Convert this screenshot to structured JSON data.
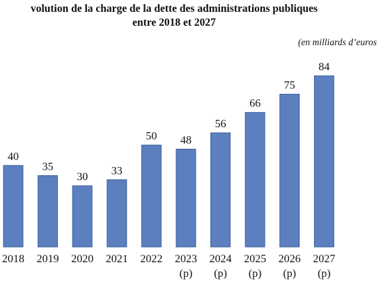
{
  "title_line1": "volution de la charge de la dette des administrations publiques",
  "title_line2": "entre 2018 et 2027",
  "unit_note": "(en milliards d’euros",
  "chart_data": {
    "type": "bar",
    "categories": [
      "2018",
      "2019",
      "2020",
      "2021",
      "2022",
      "2023",
      "2024",
      "2025",
      "2026",
      "2027"
    ],
    "category_sublabels": [
      "",
      "",
      "",
      "",
      "",
      "(p)",
      "(p)",
      "(p)",
      "(p)",
      "(p)"
    ],
    "values": [
      40,
      35,
      30,
      33,
      50,
      48,
      56,
      66,
      75,
      84
    ],
    "bar_color": "#5b7fbf",
    "ylim": [
      0,
      84
    ],
    "grid": false,
    "legend": "none"
  }
}
